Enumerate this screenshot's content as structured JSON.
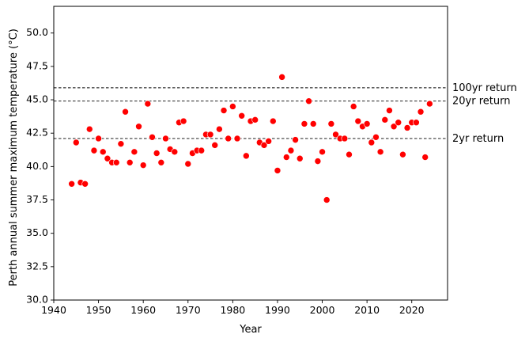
{
  "chart_data": {
    "type": "scatter",
    "title": "",
    "xlabel": "Year",
    "ylabel": "Perth annual summer maximum temperature (°C)",
    "xlim": [
      1940,
      2028
    ],
    "ylim": [
      30.0,
      52.0
    ],
    "xticks": [
      1940,
      1950,
      1960,
      1970,
      1980,
      1990,
      2000,
      2010,
      2020
    ],
    "xtick_labels": [
      "1940",
      "1950",
      "1960",
      "1970",
      "1980",
      "1990",
      "2000",
      "2010",
      "2020"
    ],
    "yticks": [
      30.0,
      32.5,
      35.0,
      37.5,
      40.0,
      42.5,
      45.0,
      47.5,
      50.0
    ],
    "ytick_labels": [
      "30.0",
      "32.5",
      "35.0",
      "37.5",
      "40.0",
      "42.5",
      "45.0",
      "47.5",
      "50.0"
    ],
    "grid": false,
    "marker_color": "#ff0000",
    "reference_lines": [
      {
        "label": "100yr return",
        "y": 45.9
      },
      {
        "label": "20yr return",
        "y": 44.9
      },
      {
        "label": "2yr return",
        "y": 42.1
      }
    ],
    "x": [
      1944,
      1945,
      1946,
      1947,
      1948,
      1949,
      1950,
      1951,
      1952,
      1953,
      1954,
      1955,
      1956,
      1957,
      1958,
      1959,
      1960,
      1961,
      1962,
      1963,
      1964,
      1965,
      1966,
      1967,
      1968,
      1969,
      1970,
      1971,
      1972,
      1973,
      1974,
      1975,
      1976,
      1977,
      1978,
      1979,
      1980,
      1981,
      1982,
      1983,
      1984,
      1985,
      1986,
      1987,
      1988,
      1989,
      1990,
      1991,
      1992,
      1993,
      1994,
      1995,
      1996,
      1997,
      1998,
      1999,
      2000,
      2001,
      2002,
      2003,
      2004,
      2005,
      2006,
      2007,
      2008,
      2009,
      2010,
      2011,
      2012,
      2013,
      2014,
      2015,
      2016,
      2017,
      2018,
      2019,
      2020,
      2021,
      2022,
      2023,
      2024
    ],
    "y": [
      38.7,
      41.8,
      38.8,
      38.7,
      42.8,
      41.2,
      42.1,
      41.1,
      40.6,
      40.3,
      40.3,
      41.7,
      44.1,
      40.3,
      41.1,
      43.0,
      40.1,
      44.7,
      42.2,
      41.0,
      40.3,
      42.1,
      41.3,
      41.1,
      43.3,
      43.4,
      40.2,
      41.0,
      41.2,
      41.2,
      42.4,
      42.4,
      41.6,
      42.8,
      44.2,
      42.1,
      44.5,
      42.1,
      43.8,
      40.8,
      43.4,
      43.5,
      41.8,
      41.6,
      41.9,
      43.4,
      39.7,
      46.7,
      40.7,
      41.2,
      42.0,
      40.6,
      43.2,
      44.9,
      43.2,
      40.4,
      41.1,
      37.5,
      43.2,
      42.4,
      42.1,
      42.1,
      40.9,
      44.5,
      43.4,
      43.0,
      43.2,
      41.8,
      42.2,
      41.1,
      43.5,
      44.2,
      43.0,
      43.3,
      40.9,
      42.9,
      43.3,
      43.3,
      44.1,
      40.7,
      44.7
    ]
  }
}
